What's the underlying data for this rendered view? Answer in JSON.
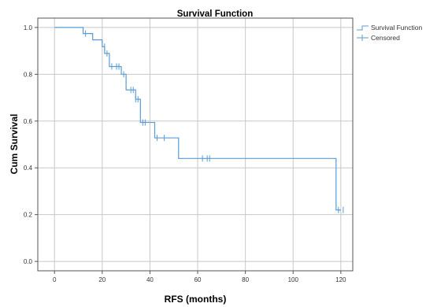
{
  "chart_data": {
    "type": "line",
    "title": "Survival Function",
    "xlabel": "RFS (months)",
    "ylabel": "Cum Survival",
    "xlim": [
      -7,
      125
    ],
    "ylim": [
      -0.04,
      1.04
    ],
    "x_ticks": [
      0,
      20,
      40,
      60,
      80,
      100,
      120
    ],
    "x_tick_labels": [
      "0",
      "20",
      "40",
      "60",
      "80",
      "100",
      "120"
    ],
    "y_ticks": [
      0.0,
      0.2,
      0.4,
      0.6,
      0.8,
      1.0
    ],
    "y_tick_labels": [
      "0.0",
      "0.2",
      "0.4",
      "0.6",
      "0.8",
      "1.0"
    ],
    "grid": true,
    "legend_position": "right",
    "colors": {
      "line": "#5b9bd5",
      "grid": "#c8c8c8",
      "axis": "#555555"
    },
    "series": [
      {
        "name": "Survival Function",
        "kind": "step",
        "x": [
          0,
          12,
          16,
          20,
          21,
          23,
          28,
          30,
          34,
          36,
          42,
          52,
          118,
          120
        ],
        "y": [
          1.0,
          0.974,
          0.947,
          0.918,
          0.889,
          0.833,
          0.8,
          0.733,
          0.693,
          0.594,
          0.528,
          0.44,
          0.22,
          0.22
        ]
      },
      {
        "name": "Censored",
        "kind": "marker",
        "x": [
          13,
          21,
          22,
          24,
          26,
          27,
          29,
          32,
          33,
          34,
          35,
          37,
          38,
          43,
          46,
          62,
          64,
          65,
          119,
          121
        ],
        "y": [
          0.974,
          0.918,
          0.889,
          0.833,
          0.833,
          0.833,
          0.8,
          0.733,
          0.733,
          0.693,
          0.693,
          0.594,
          0.594,
          0.528,
          0.528,
          0.44,
          0.44,
          0.44,
          0.22,
          0.22
        ]
      }
    ]
  }
}
